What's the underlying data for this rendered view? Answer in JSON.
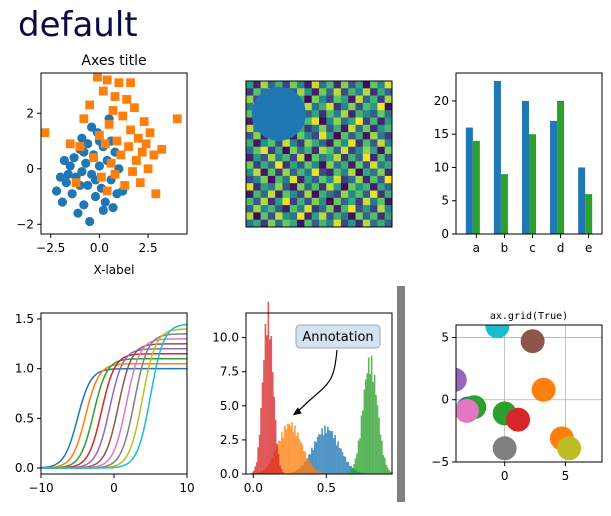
{
  "figure": {
    "title": "default",
    "title_color": "#0c0a42"
  },
  "colors": {
    "blue": "#1f77b4",
    "orange": "#ff7f0e",
    "green": "#2ca02c",
    "red": "#d62728",
    "purple": "#9467bd",
    "brown": "#8c564b",
    "pink": "#e377c2",
    "gray": "#7f7f7f",
    "olive": "#bcbd22",
    "cyan": "#17becf"
  },
  "chart_data": [
    {
      "type": "scatter",
      "title": "Axes title",
      "xlabel": "X-label",
      "ylabel": "",
      "xlim": [
        -3.0,
        4.5
      ],
      "ylim": [
        -2.35,
        3.45
      ],
      "xticks": [
        {
          "v": -2.5,
          "label": "−2.5"
        },
        {
          "v": 0.0,
          "label": "0.0"
        },
        {
          "v": 2.5,
          "label": "2.5"
        }
      ],
      "yticks": [
        {
          "v": -2,
          "label": "−2"
        },
        {
          "v": 0,
          "label": "0"
        },
        {
          "v": 2,
          "label": "2"
        }
      ],
      "series": [
        {
          "marker": "circle",
          "color": "#1f77b4",
          "points": [
            [
              -2.2,
              -0.8
            ],
            [
              -1.9,
              -1.2
            ],
            [
              -1.7,
              -0.5
            ],
            [
              -1.5,
              0.1
            ],
            [
              -1.4,
              -0.9
            ],
            [
              -1.3,
              0.4
            ],
            [
              -1.2,
              -0.3
            ],
            [
              -1.1,
              -1.6
            ],
            [
              -1.0,
              0.7
            ],
            [
              -0.9,
              -0.1
            ],
            [
              -0.9,
              1.1
            ],
            [
              -0.8,
              -1.3
            ],
            [
              -0.7,
              0.2
            ],
            [
              -0.6,
              -0.6
            ],
            [
              -0.6,
              0.9
            ],
            [
              -0.5,
              -1.9
            ],
            [
              -0.4,
              -0.2
            ],
            [
              -0.3,
              0.5
            ],
            [
              -0.2,
              -1.0
            ],
            [
              -0.1,
              1.3
            ],
            [
              0.0,
              0.1
            ],
            [
              0.1,
              -0.7
            ],
            [
              0.2,
              0.8
            ],
            [
              0.3,
              -1.2
            ],
            [
              0.4,
              0.3
            ],
            [
              0.5,
              1.8
            ],
            [
              0.6,
              -0.4
            ],
            [
              0.7,
              -1.4
            ],
            [
              0.8,
              0.6
            ],
            [
              0.9,
              -0.9
            ],
            [
              1.0,
              0.0
            ],
            [
              -1.6,
              -0.2
            ],
            [
              -1.8,
              0.3
            ],
            [
              -0.4,
              1.5
            ],
            [
              0.2,
              -1.5
            ],
            [
              -1.0,
              -0.6
            ],
            [
              0.6,
              1.0
            ],
            [
              -0.2,
              -0.4
            ],
            [
              -2.0,
              -0.3
            ],
            [
              1.2,
              -0.8
            ],
            [
              0.0,
              1.0
            ],
            [
              -0.8,
              0.6
            ]
          ]
        },
        {
          "marker": "square",
          "color": "#ff7f0e",
          "points": [
            [
              -2.8,
              1.3
            ],
            [
              -1.5,
              0.9
            ],
            [
              -1.2,
              -0.5
            ],
            [
              -0.8,
              1.8
            ],
            [
              -0.5,
              2.3
            ],
            [
              -0.3,
              0.4
            ],
            [
              0.0,
              1.2
            ],
            [
              0.1,
              -0.3
            ],
            [
              0.2,
              2.8
            ],
            [
              0.3,
              0.9
            ],
            [
              0.4,
              -0.8
            ],
            [
              0.5,
              1.6
            ],
            [
              0.6,
              0.2
            ],
            [
              0.7,
              2.1
            ],
            [
              0.8,
              -0.2
            ],
            [
              0.9,
              1.0
            ],
            [
              1.0,
              3.1
            ],
            [
              1.1,
              0.5
            ],
            [
              1.2,
              1.9
            ],
            [
              1.3,
              -0.6
            ],
            [
              1.4,
              2.5
            ],
            [
              1.5,
              0.8
            ],
            [
              1.6,
              1.4
            ],
            [
              1.7,
              -0.1
            ],
            [
              1.8,
              2.2
            ],
            [
              1.9,
              0.3
            ],
            [
              2.0,
              1.1
            ],
            [
              2.1,
              -0.5
            ],
            [
              2.2,
              0.6
            ],
            [
              2.3,
              1.7
            ],
            [
              2.5,
              0.0
            ],
            [
              2.6,
              1.3
            ],
            [
              2.8,
              0.5
            ],
            [
              2.9,
              -0.9
            ],
            [
              4.0,
              1.8
            ],
            [
              3.2,
              0.7
            ],
            [
              -0.1,
              3.3
            ],
            [
              0.4,
              3.2
            ],
            [
              1.6,
              3.1
            ],
            [
              -1.0,
              0.8
            ],
            [
              0.8,
              2.6
            ],
            [
              2.4,
              0.9
            ]
          ]
        }
      ]
    },
    {
      "type": "heatmap",
      "title": "",
      "rows": 20,
      "cols": 20,
      "values": [
        [
          0.55,
          0.12,
          0.87,
          0.33,
          0.64,
          0.21,
          0.78,
          0.45,
          0.09,
          0.92,
          0.37,
          0.68,
          0.14,
          0.81,
          0.26,
          0.59,
          0.03,
          0.74,
          0.48,
          0.95
        ],
        [
          0.18,
          0.71,
          0.4,
          0.96,
          0.07,
          0.63,
          0.29,
          0.85,
          0.52,
          0.11,
          0.77,
          0.34,
          0.9,
          0.23,
          0.66,
          0.42,
          0.88,
          0.15,
          0.61,
          0.3
        ],
        [
          0.83,
          0.25,
          0.69,
          0.13,
          0.5,
          0.94,
          0.36,
          0.6,
          0.02,
          0.79,
          0.47,
          0.2,
          0.73,
          0.56,
          0.08,
          0.91,
          0.32,
          0.65,
          0.19,
          0.86
        ],
        [
          0.44,
          0.98,
          0.06,
          0.58,
          0.82,
          0.27,
          0.67,
          0.1,
          0.89,
          0.38,
          0.62,
          0.93,
          0.17,
          0.46,
          0.8,
          0.24,
          0.7,
          0.53,
          0.99,
          0.05
        ],
        [
          0.72,
          0.35,
          0.84,
          0.22,
          0.41,
          0.76,
          0.04,
          0.97,
          0.31,
          0.57,
          0.16,
          0.69,
          0.43,
          0.87,
          0.12,
          0.64,
          0.49,
          0.28,
          0.75,
          0.39
        ],
        [
          0.09,
          0.61,
          0.3,
          0.79,
          0.14,
          0.88,
          0.52,
          0.25,
          0.7,
          0.95,
          0.03,
          0.47,
          0.83,
          0.36,
          0.58,
          0.99,
          0.21,
          0.66,
          0.11,
          0.54
        ],
        [
          0.9,
          0.42,
          0.67,
          0.05,
          0.73,
          0.32,
          0.86,
          0.6,
          0.18,
          0.41,
          0.8,
          0.26,
          0.63,
          0.08,
          0.92,
          0.35,
          0.77,
          0.14,
          0.51,
          0.68
        ],
        [
          0.27,
          0.81,
          0.13,
          0.94,
          0.37,
          0.59,
          0.1,
          0.76,
          0.46,
          0.22,
          0.96,
          0.55,
          0.01,
          0.72,
          0.3,
          0.61,
          0.07,
          0.85,
          0.4,
          0.19
        ],
        [
          0.63,
          0.07,
          0.5,
          0.71,
          0.24,
          0.92,
          0.45,
          0.17,
          0.83,
          0.6,
          0.34,
          0.08,
          0.78,
          0.5,
          0.97,
          0.15,
          0.69,
          0.28,
          0.91,
          0.44
        ],
        [
          0.36,
          0.74,
          0.96,
          0.19,
          0.6,
          0.03,
          0.8,
          0.39,
          0.65,
          0.13,
          0.87,
          0.71,
          0.29,
          0.93,
          0.2,
          0.48,
          0.84,
          0.56,
          0.06,
          0.79
        ],
        [
          0.11,
          0.53,
          0.27,
          0.86,
          0.44,
          0.67,
          0.22,
          0.91,
          0.05,
          0.75,
          0.42,
          0.58,
          0.89,
          0.16,
          0.64,
          0.33,
          0.98,
          0.12,
          0.7,
          0.25
        ],
        [
          0.78,
          0.2,
          0.62,
          0.35,
          0.99,
          0.15,
          0.57,
          0.28,
          0.73,
          0.47,
          0.04,
          0.82,
          0.37,
          0.61,
          0.09,
          0.76,
          0.24,
          0.93,
          0.43,
          0.6
        ],
        [
          0.5,
          0.9,
          0.08,
          0.73,
          0.18,
          0.84,
          0.31,
          0.66,
          0.4,
          0.97,
          0.23,
          0.12,
          0.7,
          0.45,
          0.88,
          0.02,
          0.59,
          0.38,
          0.81,
          0.14
        ],
        [
          0.23,
          0.46,
          0.79,
          0.04,
          0.68,
          0.39,
          0.95,
          0.11,
          0.58,
          0.3,
          0.74,
          0.49,
          0.93,
          0.19,
          0.35,
          0.85,
          0.13,
          0.72,
          0.27,
          0.99
        ],
        [
          0.95,
          0.14,
          0.56,
          0.42,
          0.83,
          0.26,
          0.07,
          0.81,
          0.34,
          0.69,
          0.16,
          0.9,
          0.55,
          0.03,
          0.77,
          0.5,
          0.66,
          0.09,
          0.58,
          0.33
        ],
        [
          0.06,
          0.67,
          0.34,
          0.91,
          0.1,
          0.72,
          0.48,
          0.2,
          0.87,
          0.04,
          0.63,
          0.38,
          0.21,
          0.84,
          0.46,
          0.71,
          0.29,
          0.96,
          0.17,
          0.62
        ],
        [
          0.69,
          0.28,
          0.88,
          0.15,
          0.55,
          0.97,
          0.19,
          0.64,
          0.25,
          0.8,
          0.51,
          0.01,
          0.76,
          0.32,
          0.6,
          0.18,
          0.92,
          0.41,
          0.74,
          0.08
        ],
        [
          0.32,
          0.85,
          0.47,
          0.66,
          0.29,
          0.08,
          0.71,
          0.43,
          0.94,
          0.17,
          0.36,
          0.8,
          0.1,
          0.67,
          0.98,
          0.25,
          0.54,
          0.2,
          0.89,
          0.45
        ],
        [
          0.87,
          0.02,
          0.73,
          0.24,
          0.91,
          0.52,
          0.38,
          0.98,
          0.12,
          0.56,
          0.89,
          0.26,
          0.64,
          0.41,
          0.05,
          0.79,
          0.33,
          0.7,
          0.15,
          0.57
        ],
        [
          0.41,
          0.59,
          0.17,
          0.8,
          0.35,
          0.76,
          0.6,
          0.05,
          0.71,
          0.28,
          0.65,
          0.45,
          0.95,
          0.22,
          0.53,
          0.14,
          0.88,
          0.37,
          0.62,
          0.31
        ]
      ],
      "overlay_circle": {
        "cx": 4.5,
        "cy": 4.5,
        "r": 3.7,
        "color": "#1f77b4"
      }
    },
    {
      "type": "bar",
      "title": "",
      "categories": [
        "a",
        "b",
        "c",
        "d",
        "e"
      ],
      "series": [
        {
          "color": "#1f77b4",
          "values": [
            16,
            23,
            20,
            17,
            10
          ]
        },
        {
          "color": "#2ca02c",
          "values": [
            14,
            9,
            15,
            20,
            6
          ]
        }
      ],
      "ylim": [
        0,
        24.2
      ],
      "yticks": [
        0,
        5,
        10,
        15,
        20
      ]
    },
    {
      "type": "line",
      "title": "",
      "xlim": [
        -10,
        10
      ],
      "ylim": [
        -0.06,
        1.56
      ],
      "xticks": [
        {
          "v": -10,
          "label": "−10"
        },
        {
          "v": 0,
          "label": "0"
        },
        {
          "v": 10,
          "label": "10"
        }
      ],
      "yticks": [
        {
          "v": 0.0,
          "label": "0.0"
        },
        {
          "v": 0.5,
          "label": "0.5"
        },
        {
          "v": 1.0,
          "label": "1.0"
        },
        {
          "v": 1.5,
          "label": "1.5"
        }
      ],
      "series": [
        {
          "color": "#1f77b4",
          "shift": -5.0,
          "amp": 1.0
        },
        {
          "color": "#ff7f0e",
          "shift": -3.9,
          "amp": 1.05
        },
        {
          "color": "#2ca02c",
          "shift": -2.8,
          "amp": 1.1
        },
        {
          "color": "#d62728",
          "shift": -1.7,
          "amp": 1.15
        },
        {
          "color": "#9467bd",
          "shift": -0.6,
          "amp": 1.2
        },
        {
          "color": "#8c564b",
          "shift": 0.6,
          "amp": 1.25
        },
        {
          "color": "#e377c2",
          "shift": 1.7,
          "amp": 1.3
        },
        {
          "color": "#7f7f7f",
          "shift": 2.8,
          "amp": 1.35
        },
        {
          "color": "#bcbd22",
          "shift": 3.9,
          "amp": 1.4
        },
        {
          "color": "#17becf",
          "shift": 5.0,
          "amp": 1.45
        }
      ]
    },
    {
      "type": "histogram",
      "title": "",
      "xlim": [
        -0.05,
        0.95
      ],
      "ylim": [
        0,
        11.8
      ],
      "xticks": [
        {
          "v": 0.0,
          "label": "0.0"
        },
        {
          "v": 0.5,
          "label": "0.5"
        }
      ],
      "yticks": [
        {
          "v": 0.0,
          "label": "0.0"
        },
        {
          "v": 2.5,
          "label": "2.5"
        },
        {
          "v": 5.0,
          "label": "5.0"
        },
        {
          "v": 7.5,
          "label": "7.5"
        },
        {
          "v": 10.0,
          "label": "10.0"
        }
      ],
      "series": [
        {
          "color": "#1f77b4",
          "mu": 0.5,
          "sigma": 0.09,
          "peak": 3.2
        },
        {
          "color": "#ff7f0e",
          "mu": 0.25,
          "sigma": 0.08,
          "peak": 3.5
        },
        {
          "color": "#2ca02c",
          "mu": 0.8,
          "sigma": 0.05,
          "peak": 7.9
        },
        {
          "color": "#d62728",
          "mu": 0.1,
          "sigma": 0.035,
          "peak": 11.3
        }
      ],
      "annotation": {
        "text": "Annotation",
        "target": [
          0.27,
          4.3
        ]
      }
    },
    {
      "type": "scatter",
      "title": "ax.grid(True)",
      "xlim": [
        -4,
        8
      ],
      "ylim": [
        -5,
        6
      ],
      "xticks": [
        {
          "v": 0,
          "label": "0"
        },
        {
          "v": 5,
          "label": "5"
        }
      ],
      "yticks": [
        {
          "v": -5,
          "label": "−5"
        },
        {
          "v": 0,
          "label": "0"
        },
        {
          "v": 5,
          "label": "5"
        }
      ],
      "grid": true,
      "points": [
        {
          "x": -0.6,
          "y": 5.9,
          "color": "#17becf"
        },
        {
          "x": 2.3,
          "y": 4.7,
          "color": "#8c564b"
        },
        {
          "x": -4.1,
          "y": 1.6,
          "color": "#9467bd"
        },
        {
          "x": 3.2,
          "y": 0.8,
          "color": "#ff7f0e"
        },
        {
          "x": -3.0,
          "y": -0.7,
          "color": "#1f77b4"
        },
        {
          "x": -2.5,
          "y": -0.6,
          "color": "#2ca02c"
        },
        {
          "x": -3.1,
          "y": -0.9,
          "color": "#e377c2"
        },
        {
          "x": 0.0,
          "y": -1.1,
          "color": "#2ca02c"
        },
        {
          "x": 1.1,
          "y": -1.6,
          "color": "#d62728"
        },
        {
          "x": 0.0,
          "y": -3.9,
          "color": "#7f7f7f"
        },
        {
          "x": 4.7,
          "y": -3.1,
          "color": "#ff7f0e"
        },
        {
          "x": 5.3,
          "y": -3.9,
          "color": "#bcbd22"
        }
      ]
    }
  ],
  "annotation_box": {
    "text": "Annotation"
  },
  "separator": {
    "color": "#808080"
  }
}
